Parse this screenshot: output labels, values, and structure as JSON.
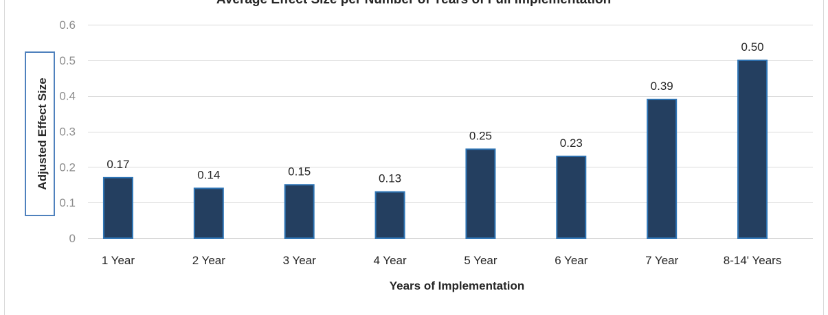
{
  "chart_data": {
    "type": "bar",
    "title": "Average Effect Size per Number of Years of Full Implementation",
    "xlabel": "Years of Implementation",
    "ylabel": "Adjusted Effect Size",
    "categories": [
      "1 Year",
      "2 Year",
      "3 Year",
      "4 Year",
      "5 Year",
      "6 Year",
      "7 Year",
      "8-14' Years"
    ],
    "values": [
      0.17,
      0.14,
      0.15,
      0.13,
      0.25,
      0.23,
      0.39,
      0.5
    ],
    "data_labels": [
      "0.17",
      "0.14",
      "0.15",
      "0.13",
      "0.25",
      "0.23",
      "0.39",
      "0.50"
    ],
    "yticks": [
      "0",
      "0.1",
      "0.2",
      "0.3",
      "0.4",
      "0.5",
      "0.6"
    ],
    "ylim": [
      0,
      0.6
    ],
    "grid": true,
    "legend": "none",
    "colors": {
      "bar_fill": "#243f60",
      "bar_edge": "#2e75b6",
      "grid": "#d9d9d9",
      "ylabel_box": "#4f81bd",
      "frame": "#d9d9d9"
    }
  }
}
